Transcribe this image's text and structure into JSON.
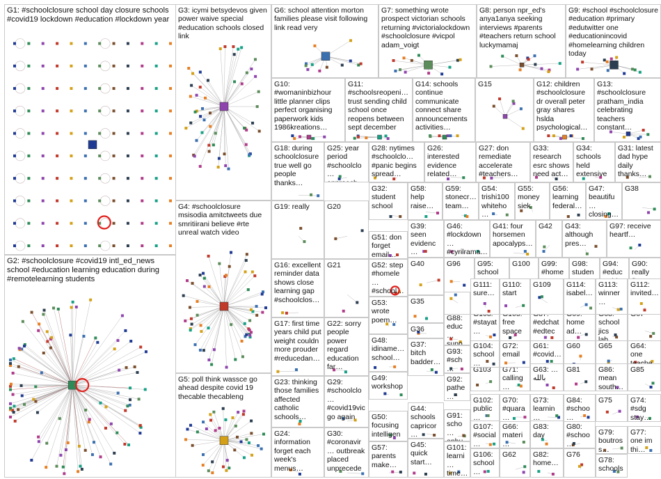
{
  "groups": [
    {
      "id": "G1",
      "label": "G1: #schoolclosure school day closure schools #covid19 lockdown #education #lockdown year"
    },
    {
      "id": "G2",
      "label": "G2: #schoolclosure #covid19 intl_ed_news school #education learning education during #remotelearning students"
    },
    {
      "id": "G3",
      "label": "G3: icymi betsydevos given power waive special #education schools closed link"
    },
    {
      "id": "G4",
      "label": "G4: #schoolclosure msisodia amitctweets due smritiirani believe #rte unreal watch video"
    },
    {
      "id": "G5",
      "label": "G5: poll think wassce go ahead despite covid 19 thecable thecableng"
    },
    {
      "id": "G6",
      "label": "G6: school attention morton families please visit following link read very"
    },
    {
      "id": "G7",
      "label": "G7: something wrote prospect victorian schools returning #victorialockdown #schoolclosure #vicpol adam_voigt"
    },
    {
      "id": "G8",
      "label": "G8: person npr_ed's anya1anya seeking interviews #parents #teachers return school luckymamaj"
    },
    {
      "id": "G9",
      "label": "G9: #school #schoolclosure #education #primary #edutwitter one #educationincovid #homelearning children today"
    },
    {
      "id": "G10",
      "label": "G10: #womaninbizhour little planner clips perfect organising paperwork kids 1986kreations…"
    },
    {
      "id": "G11",
      "label": "G11: #schoolsreopeni… trust sending child school once reopens between sept december"
    },
    {
      "id": "G12",
      "label": "G12: children #schoolclosure dr overall peter gray shares hslda psychological…"
    },
    {
      "id": "G13",
      "label": "G13: #schoolclosure pratham_india celebrating teachers constant…"
    },
    {
      "id": "G14",
      "label": "G14: schools continue communicate connect share announcements activities…"
    },
    {
      "id": "G15",
      "label": "G15"
    },
    {
      "id": "G16",
      "label": "G16: excellent reminder data shows close learning gap #schoolclos…"
    },
    {
      "id": "G17",
      "label": "G17: first time years child put weight couldn more prouder #reducedan…"
    },
    {
      "id": "G18",
      "label": "G18: during schoolclosure true well go people thanks…"
    },
    {
      "id": "G19",
      "label": "G19: really"
    },
    {
      "id": "G20",
      "label": "G20"
    },
    {
      "id": "G21",
      "label": "G21"
    },
    {
      "id": "G22",
      "label": "G22: sorry people power regard education far…"
    },
    {
      "id": "G23",
      "label": "G23: thinking those families affected catholic schools…"
    },
    {
      "id": "G24",
      "label": "G24: information forget each week's menus…"
    },
    {
      "id": "G25",
      "label": "G25: year period #schoolclo… approach transition lionheart_t…"
    },
    {
      "id": "G26",
      "label": "G26: interested evidence related…"
    },
    {
      "id": "G27",
      "label": "G27: don remediate accelerate #teachers…"
    },
    {
      "id": "G28",
      "label": "G28: nytimes #schoolclo… #panic begins spread…"
    },
    {
      "id": "G29",
      "label": "G29: #schoolclo… #covid19vic go again"
    },
    {
      "id": "G30",
      "label": "G30: #coronavir… outbreak placed unprecede…"
    },
    {
      "id": "G31",
      "label": "G31: latest dad hype daily thanks…"
    },
    {
      "id": "G32",
      "label": "G32: student school"
    },
    {
      "id": "G33",
      "label": "G33: research esrc shows need act…"
    },
    {
      "id": "G34",
      "label": "G34: schools held extensive…"
    },
    {
      "id": "G35",
      "label": "G35"
    },
    {
      "id": "G36",
      "label": "G36"
    },
    {
      "id": "G37",
      "label": "G37: bitch badder…"
    },
    {
      "id": "G38",
      "label": "G38"
    },
    {
      "id": "G39",
      "label": "G39: seen evidenc…"
    },
    {
      "id": "G40",
      "label": "G40"
    },
    {
      "id": "G41",
      "label": "G41: four horsemen apocalyps…"
    },
    {
      "id": "G42",
      "label": "G42"
    },
    {
      "id": "G43",
      "label": "G43: although pres…"
    },
    {
      "id": "G44",
      "label": "G44: schools capricor…"
    },
    {
      "id": "G45",
      "label": "G45: quick start…"
    },
    {
      "id": "G46",
      "label": "G46: #lockdown… #cyrilrama…"
    },
    {
      "id": "G47",
      "label": "G47: beautifu… closing…"
    },
    {
      "id": "G48",
      "label": "G48: idiname… school…"
    },
    {
      "id": "G49",
      "label": "G49: workshop"
    },
    {
      "id": "G50",
      "label": "G50: focusing intelligen…"
    },
    {
      "id": "G51",
      "label": "G51: don forget email…"
    },
    {
      "id": "G52",
      "label": "G52: step #homele… #school…"
    },
    {
      "id": "G53",
      "label": "G53: wrote poem…"
    },
    {
      "id": "G54",
      "label": "G54: trishi100 whiteho…"
    },
    {
      "id": "G55",
      "label": "G55: money siek"
    },
    {
      "id": "G56",
      "label": "G56: learning federal…"
    },
    {
      "id": "G57",
      "label": "G57: parents make…"
    },
    {
      "id": "G58",
      "label": "G58: help raise…"
    },
    {
      "id": "G59",
      "label": "G59: stonecr… team…"
    },
    {
      "id": "G60",
      "label": "G60"
    },
    {
      "id": "G61",
      "label": "G61: #covid…"
    },
    {
      "id": "G62",
      "label": "G62"
    },
    {
      "id": "G63",
      "label": "G63: …بالله"
    },
    {
      "id": "G64",
      "label": "G64: one teache…"
    },
    {
      "id": "G65",
      "label": "G65"
    },
    {
      "id": "G66",
      "label": "G66: materi…"
    },
    {
      "id": "G67",
      "label": "G67"
    },
    {
      "id": "G68",
      "label": "G68: school jics lab…"
    },
    {
      "id": "G69",
      "label": "G69: home ad…"
    },
    {
      "id": "G70",
      "label": "G70: #quara…"
    },
    {
      "id": "G71",
      "label": "G71: calling…"
    },
    {
      "id": "G72",
      "label": "G72: email"
    },
    {
      "id": "G73",
      "label": "G73: learnin…"
    },
    {
      "id": "G74",
      "label": "G74: #sdg stay…"
    },
    {
      "id": "G75",
      "label": "G75"
    },
    {
      "id": "G76",
      "label": "G76"
    },
    {
      "id": "G77",
      "label": "G77: one im thi…"
    },
    {
      "id": "G78",
      "label": "G78: schools…"
    },
    {
      "id": "G79",
      "label": "G79: boutross…"
    },
    {
      "id": "G80",
      "label": "G80: #schoo…"
    },
    {
      "id": "G81",
      "label": "G81"
    },
    {
      "id": "G82",
      "label": "G82: home…"
    },
    {
      "id": "G83",
      "label": "G83: day"
    },
    {
      "id": "G84",
      "label": "G84: #schoo…"
    },
    {
      "id": "G85",
      "label": "G85"
    },
    {
      "id": "G86",
      "label": "G86: mean south…"
    },
    {
      "id": "G87",
      "label": "G87: #edchat #edtec…"
    },
    {
      "id": "G88",
      "label": "G88: educ… supp…"
    },
    {
      "id": "G89",
      "label": "G89"
    },
    {
      "id": "G90",
      "label": "G90: really fix…"
    },
    {
      "id": "G91",
      "label": "G91: scho… aphu…"
    },
    {
      "id": "G92",
      "label": "G92: pathe…"
    },
    {
      "id": "G93",
      "label": "G93: #sch… #sch…"
    },
    {
      "id": "G94",
      "label": "G94: #educ… hit…"
    },
    {
      "id": "G95",
      "label": "G95: school resear…"
    },
    {
      "id": "G96",
      "label": "G96"
    },
    {
      "id": "G97",
      "label": "G97: receive heartf…"
    },
    {
      "id": "G98",
      "label": "G98: studen… core…"
    },
    {
      "id": "G99",
      "label": "G99: #home… #lockd…"
    },
    {
      "id": "G100",
      "label": "G100"
    },
    {
      "id": "G101",
      "label": "G101: learni… time…"
    },
    {
      "id": "G102",
      "label": "G102: public…"
    },
    {
      "id": "G103",
      "label": "G103"
    },
    {
      "id": "G104",
      "label": "G104: school…"
    },
    {
      "id": "G105",
      "label": "G105: free space…"
    },
    {
      "id": "G106",
      "label": "G106: school…"
    },
    {
      "id": "G107",
      "label": "G107: #social…"
    },
    {
      "id": "G108",
      "label": "G108: #stayat…"
    },
    {
      "id": "G109",
      "label": "G109"
    },
    {
      "id": "G110",
      "label": "G110: start"
    },
    {
      "id": "G111",
      "label": "G111: sure…"
    },
    {
      "id": "G112",
      "label": "G112: invited…"
    },
    {
      "id": "G113",
      "label": "G113: winner…"
    },
    {
      "id": "G114",
      "label": "G114: isabel…"
    }
  ],
  "colors": {
    "node_palette": [
      "#1f3a93",
      "#2e8b57",
      "#8e44ad",
      "#c0392b",
      "#d4a017",
      "#3a6fb0",
      "#5b8c5a",
      "#7a4e2d",
      "#2c3e50",
      "#b03a8a",
      "#16a085",
      "#e67e22"
    ],
    "hub_highlight": "#e0201b",
    "edge_gray": "#9a9a9a",
    "edge_red": "#a33a3a",
    "border": "#c9c9c9"
  }
}
